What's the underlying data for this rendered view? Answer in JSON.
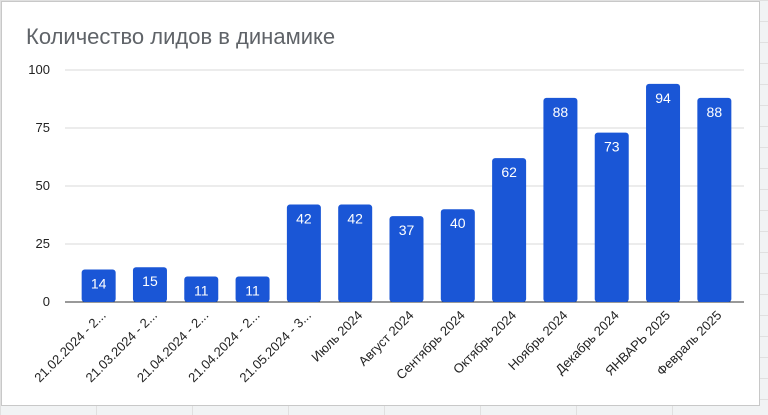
{
  "chart_data": {
    "type": "bar",
    "title": "Количество лидов в динамике",
    "xlabel": "",
    "ylabel": "",
    "ylim": [
      0,
      100
    ],
    "yticks": [
      0,
      25,
      50,
      75,
      100
    ],
    "grid": true,
    "legend": "none",
    "bar_color": "#1a56d6",
    "categories": [
      "21.02.2024 - 2...",
      "21.03.2024 - 2...",
      "21.04.2024 - 2...",
      "21.04.2024 - 2...",
      "21.05.2024 - 3...",
      "Июль 2024",
      "Август 2024",
      "Сентябрь 2024",
      "Октябрь 2024",
      "Ноябрь 2024",
      "Декабрь 2024",
      "ЯНВАРЬ 2025",
      "Февраль 2025"
    ],
    "values": [
      14,
      15,
      11,
      11,
      42,
      42,
      37,
      40,
      62,
      88,
      73,
      94,
      88
    ]
  }
}
